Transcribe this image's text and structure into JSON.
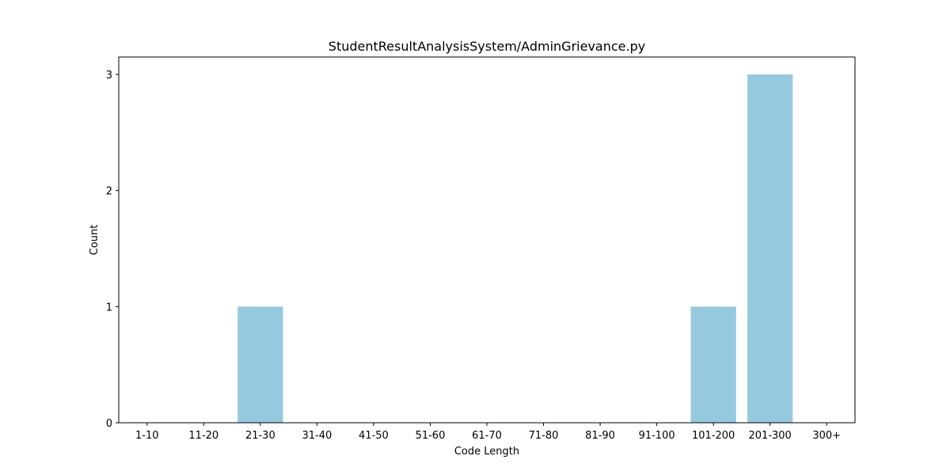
{
  "chart_data": {
    "type": "bar",
    "title": "StudentResultAnalysisSystem/AdminGrievance.py",
    "xlabel": "Code Length",
    "ylabel": "Count",
    "categories": [
      "1-10",
      "11-20",
      "21-30",
      "31-40",
      "41-50",
      "51-60",
      "61-70",
      "71-80",
      "81-90",
      "91-100",
      "101-200",
      "201-300",
      "300+"
    ],
    "values": [
      0,
      0,
      1,
      0,
      0,
      0,
      0,
      0,
      0,
      0,
      1,
      3,
      0
    ],
    "ylim": [
      0,
      3.15
    ],
    "yticks": [
      "0",
      "1",
      "2",
      "3"
    ],
    "bar_color": "#95c9de",
    "grid": false,
    "legend": "none"
  }
}
